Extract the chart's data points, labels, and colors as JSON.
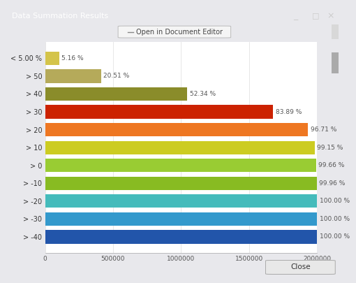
{
  "title": "Data Summation Results",
  "toolbar_text": "Open in Document Editor",
  "categories": [
    "> -40",
    "> -30",
    "> -20",
    "> -10",
    "> 0",
    "> 10",
    "> 20",
    "> 30",
    "> 40",
    "> 50",
    "< 5.00 %"
  ],
  "values": [
    2000000,
    2000000,
    2000000,
    1999200,
    1993200,
    1983000,
    1934200,
    1677800,
    1046800,
    410200,
    103200
  ],
  "percentages": [
    "100.00 %",
    "100.00 %",
    "100.00 %",
    "99.96 %",
    "99.66 %",
    "99.15 %",
    "96.71 %",
    "83.89 %",
    "52.34 %",
    "20.51 %",
    "5.16 %"
  ],
  "bar_colors": [
    "#2255aa",
    "#3399cc",
    "#44bbbb",
    "#88bb22",
    "#99cc33",
    "#cccc22",
    "#ee7722",
    "#cc2200",
    "#8a8c2a",
    "#b5aa5a",
    "#d4c44a"
  ],
  "xlim": [
    0,
    2000000
  ],
  "xticks": [
    0,
    500000,
    1000000,
    1500000,
    2000000
  ],
  "xtick_labels": [
    "0",
    "500000",
    "1000000",
    "1500000",
    "2000000"
  ],
  "background_color": "#ffffff",
  "title_bar_color": "#3d1f5e",
  "title_text_color": "#ffffff",
  "close_button_text": "Close",
  "fig_bg_color": "#e8e8ec",
  "toolbar_bg": "#f5f5f5",
  "scrollbar_color": "#cccccc"
}
